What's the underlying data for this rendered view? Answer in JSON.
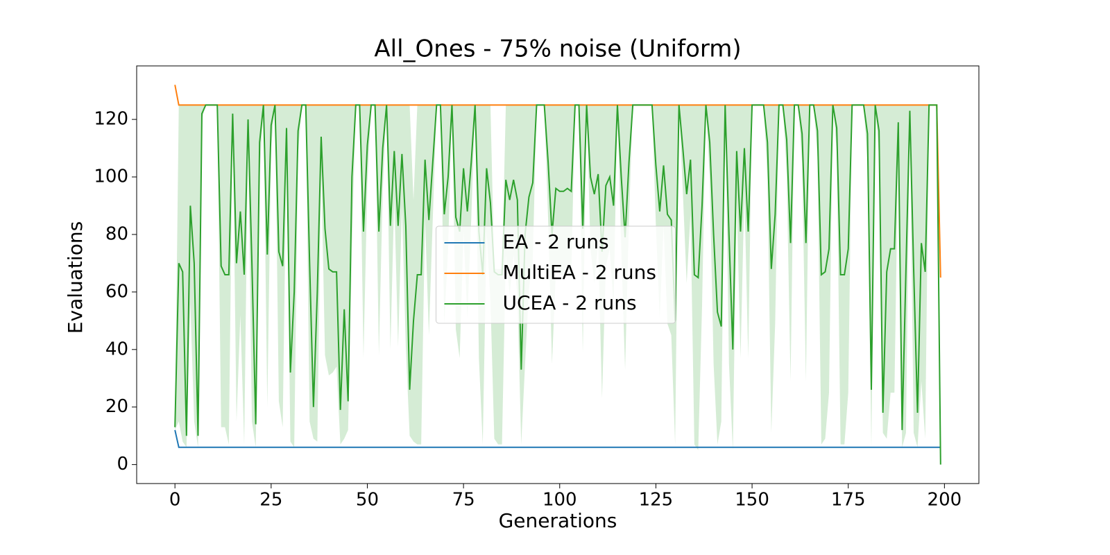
{
  "chart_data": {
    "type": "line",
    "title": "All_Ones - 75% noise (Uniform)",
    "x_label": "Generations",
    "y_label": "Evaluations",
    "xlim": [
      -9.95,
      208.95
    ],
    "ylim": [
      -6.6,
      138.6
    ],
    "xticks": [
      0,
      25,
      50,
      75,
      100,
      125,
      150,
      175,
      200
    ],
    "yticks": [
      0,
      20,
      40,
      60,
      80,
      100,
      120
    ],
    "legend": "center",
    "x": [
      0,
      1,
      2,
      3,
      4,
      5,
      6,
      7,
      8,
      9,
      10,
      11,
      12,
      13,
      14,
      15,
      16,
      17,
      18,
      19,
      20,
      21,
      22,
      23,
      24,
      25,
      26,
      27,
      28,
      29,
      30,
      31,
      32,
      33,
      34,
      35,
      36,
      37,
      38,
      39,
      40,
      41,
      42,
      43,
      44,
      45,
      46,
      47,
      48,
      49,
      50,
      51,
      52,
      53,
      54,
      55,
      56,
      57,
      58,
      59,
      60,
      61,
      62,
      63,
      64,
      65,
      66,
      67,
      68,
      69,
      70,
      71,
      72,
      73,
      74,
      75,
      76,
      77,
      78,
      79,
      80,
      81,
      82,
      83,
      84,
      85,
      86,
      87,
      88,
      89,
      90,
      91,
      92,
      93,
      94,
      95,
      96,
      97,
      98,
      99,
      100,
      101,
      102,
      103,
      104,
      105,
      106,
      107,
      108,
      109,
      110,
      111,
      112,
      113,
      114,
      115,
      116,
      117,
      118,
      119,
      120,
      121,
      122,
      123,
      124,
      125,
      126,
      127,
      128,
      129,
      130,
      131,
      132,
      133,
      134,
      135,
      136,
      137,
      138,
      139,
      140,
      141,
      142,
      143,
      144,
      145,
      146,
      147,
      148,
      149,
      150,
      151,
      152,
      153,
      154,
      155,
      156,
      157,
      158,
      159,
      160,
      161,
      162,
      163,
      164,
      165,
      166,
      167,
      168,
      169,
      170,
      171,
      172,
      173,
      174,
      175,
      176,
      177,
      178,
      179,
      180,
      181,
      182,
      183,
      184,
      185,
      186,
      187,
      188,
      189,
      190,
      191,
      192,
      193,
      194,
      195,
      196,
      197,
      198,
      199
    ],
    "series": [
      {
        "name": "EA - 2 runs",
        "color": "#1f77b4",
        "values": [
          12,
          6,
          6,
          6,
          6,
          6,
          6,
          6,
          6,
          6,
          6,
          6,
          6,
          6,
          6,
          6,
          6,
          6,
          6,
          6,
          6,
          6,
          6,
          6,
          6,
          6,
          6,
          6,
          6,
          6,
          6,
          6,
          6,
          6,
          6,
          6,
          6,
          6,
          6,
          6,
          6,
          6,
          6,
          6,
          6,
          6,
          6,
          6,
          6,
          6,
          6,
          6,
          6,
          6,
          6,
          6,
          6,
          6,
          6,
          6,
          6,
          6,
          6,
          6,
          6,
          6,
          6,
          6,
          6,
          6,
          6,
          6,
          6,
          6,
          6,
          6,
          6,
          6,
          6,
          6,
          6,
          6,
          6,
          6,
          6,
          6,
          6,
          6,
          6,
          6,
          6,
          6,
          6,
          6,
          6,
          6,
          6,
          6,
          6,
          6,
          6,
          6,
          6,
          6,
          6,
          6,
          6,
          6,
          6,
          6,
          6,
          6,
          6,
          6,
          6,
          6,
          6,
          6,
          6,
          6,
          6,
          6,
          6,
          6,
          6,
          6,
          6,
          6,
          6,
          6,
          6,
          6,
          6,
          6,
          6,
          6,
          6,
          6,
          6,
          6,
          6,
          6,
          6,
          6,
          6,
          6,
          6,
          6,
          6,
          6,
          6,
          6,
          6,
          6,
          6,
          6,
          6,
          6,
          6,
          6,
          6,
          6,
          6,
          6,
          6,
          6,
          6,
          6,
          6,
          6,
          6,
          6,
          6,
          6,
          6,
          6,
          6,
          6,
          6,
          6,
          6,
          6,
          6,
          6,
          6,
          6,
          6,
          6,
          6,
          6,
          6,
          6,
          6,
          6,
          6,
          6,
          6,
          6,
          6,
          6
        ]
      },
      {
        "name": "MultiEA - 2 runs",
        "color": "#ff7f0e",
        "values": [
          132,
          125,
          125,
          125,
          125,
          125,
          125,
          125,
          125,
          125,
          125,
          125,
          125,
          125,
          125,
          125,
          125,
          125,
          125,
          125,
          125,
          125,
          125,
          125,
          125,
          125,
          125,
          125,
          125,
          125,
          125,
          125,
          125,
          125,
          125,
          125,
          125,
          125,
          125,
          125,
          125,
          125,
          125,
          125,
          125,
          125,
          125,
          125,
          125,
          125,
          125,
          125,
          125,
          125,
          125,
          125,
          125,
          125,
          125,
          125,
          125,
          125,
          125,
          125,
          125,
          125,
          125,
          125,
          125,
          125,
          125,
          125,
          125,
          125,
          125,
          125,
          125,
          125,
          125,
          125,
          125,
          125,
          125,
          125,
          125,
          125,
          125,
          125,
          125,
          125,
          125,
          125,
          125,
          125,
          125,
          125,
          125,
          125,
          125,
          125,
          125,
          125,
          125,
          125,
          125,
          125,
          125,
          125,
          125,
          125,
          125,
          125,
          125,
          125,
          125,
          125,
          125,
          125,
          125,
          125,
          125,
          125,
          125,
          125,
          125,
          125,
          125,
          125,
          125,
          125,
          125,
          125,
          125,
          125,
          125,
          125,
          125,
          125,
          125,
          125,
          125,
          125,
          125,
          125,
          125,
          125,
          125,
          125,
          125,
          125,
          125,
          125,
          125,
          125,
          125,
          125,
          125,
          125,
          125,
          125,
          125,
          125,
          125,
          125,
          125,
          125,
          125,
          125,
          125,
          125,
          125,
          125,
          125,
          125,
          125,
          125,
          125,
          125,
          125,
          125,
          125,
          125,
          125,
          125,
          125,
          125,
          125,
          125,
          125,
          125,
          125,
          125,
          125,
          125,
          125,
          125,
          125,
          125,
          125,
          65
        ]
      },
      {
        "name": "UCEA - 2 runs",
        "color": "#2ca02c",
        "band_color": "#2ca02c",
        "values": [
          13,
          70,
          67,
          10,
          90,
          70,
          10,
          122,
          125,
          125,
          125,
          125,
          69,
          66,
          66,
          122,
          70,
          88,
          66,
          120,
          70,
          14,
          112,
          125,
          73,
          118,
          125,
          74,
          69,
          117,
          32,
          60,
          116,
          125,
          125,
          70,
          20,
          60,
          114,
          82,
          68,
          67,
          67,
          19,
          54,
          22,
          100,
          125,
          125,
          81,
          111,
          125,
          125,
          81,
          110,
          125,
          83,
          109,
          83,
          108,
          83,
          26,
          50,
          66,
          66,
          106,
          85,
          105,
          125,
          125,
          87,
          100,
          125,
          86,
          81,
          103,
          88,
          105,
          125,
          81,
          66,
          103,
          91,
          67,
          66,
          66,
          99,
          92,
          99,
          92,
          33,
          80,
          93,
          98,
          125,
          125,
          125,
          105,
          80,
          96,
          95,
          95,
          96,
          95,
          125,
          125,
          82,
          125,
          100,
          94,
          101,
          74,
          97,
          100,
          90,
          125,
          100,
          79,
          105,
          125,
          125,
          125,
          125,
          125,
          125,
          104,
          88,
          104,
          87,
          85,
          50,
          125,
          110,
          94,
          106,
          66,
          65,
          90,
          125,
          112,
          80,
          53,
          48,
          125,
          80,
          40,
          109,
          81,
          110,
          81,
          125,
          125,
          125,
          125,
          112,
          68,
          87,
          125,
          125,
          113,
          77,
          125,
          125,
          115,
          77,
          125,
          125,
          116,
          66,
          67,
          75,
          125,
          117,
          66,
          66,
          75,
          125,
          125,
          125,
          125,
          115,
          26,
          125,
          116,
          18,
          67,
          75,
          75,
          119,
          12,
          68,
          123,
          68,
          18,
          77,
          67,
          125,
          125,
          125,
          0
        ],
        "lower": [
          12,
          15,
          8,
          6,
          56,
          15,
          6,
          120,
          125,
          125,
          125,
          125,
          13,
          13,
          7,
          120,
          15,
          52,
          7,
          115,
          15,
          6,
          100,
          125,
          20,
          110,
          125,
          22,
          13,
          110,
          8,
          6,
          108,
          125,
          125,
          15,
          9,
          8,
          104,
          38,
          31,
          32,
          34,
          7,
          9,
          12,
          75,
          125,
          125,
          37,
          97,
          125,
          125,
          38,
          95,
          125,
          40,
          93,
          41,
          90,
          41,
          10,
          8,
          7,
          7,
          86,
          45,
          85,
          125,
          125,
          49,
          75,
          125,
          47,
          37,
          81,
          51,
          85,
          125,
          37,
          7,
          81,
          57,
          9,
          7,
          7,
          73,
          59,
          73,
          59,
          7,
          35,
          61,
          71,
          125,
          125,
          125,
          85,
          35,
          67,
          66,
          66,
          67,
          66,
          125,
          125,
          39,
          125,
          75,
          63,
          77,
          23,
          69,
          75,
          55,
          125,
          75,
          33,
          85,
          125,
          125,
          125,
          125,
          125,
          125,
          83,
          51,
          83,
          49,
          45,
          7,
          125,
          95,
          63,
          87,
          7,
          5,
          55,
          125,
          99,
          35,
          7,
          15,
          125,
          35,
          5,
          93,
          37,
          95,
          37,
          125,
          125,
          125,
          125,
          99,
          11,
          49,
          125,
          125,
          101,
          29,
          125,
          125,
          105,
          29,
          125,
          125,
          107,
          7,
          9,
          25,
          125,
          109,
          7,
          7,
          25,
          125,
          125,
          125,
          125,
          105,
          6,
          125,
          107,
          11,
          9,
          25,
          25,
          113,
          6,
          11,
          121,
          11,
          6,
          29,
          9,
          125,
          125,
          125,
          0
        ],
        "upper": [
          14,
          125,
          125,
          125,
          125,
          125,
          125,
          125,
          125,
          125,
          125,
          125,
          125,
          125,
          125,
          125,
          125,
          125,
          125,
          125,
          125,
          125,
          125,
          125,
          125,
          125,
          125,
          125,
          125,
          125,
          125,
          125,
          125,
          125,
          125,
          125,
          125,
          125,
          125,
          125,
          125,
          125,
          125,
          125,
          125,
          125,
          125,
          125,
          125,
          125,
          125,
          125,
          125,
          125,
          125,
          125,
          125,
          125,
          125,
          125,
          125,
          125,
          92,
          125,
          125,
          125,
          125,
          125,
          125,
          125,
          125,
          125,
          125,
          125,
          125,
          125,
          125,
          125,
          125,
          125,
          125,
          125,
          125,
          68,
          68,
          68,
          125,
          125,
          125,
          125,
          125,
          125,
          125,
          125,
          125,
          125,
          125,
          125,
          125,
          125,
          125,
          125,
          125,
          125,
          125,
          125,
          125,
          125,
          125,
          125,
          125,
          125,
          125,
          125,
          125,
          125,
          125,
          125,
          125,
          125,
          125,
          125,
          125,
          125,
          125,
          125,
          125,
          125,
          125,
          125,
          125,
          125,
          125,
          125,
          125,
          125,
          125,
          125,
          125,
          125,
          125,
          125,
          125,
          125,
          125,
          125,
          125,
          125,
          125,
          125,
          125,
          125,
          125,
          125,
          125,
          125,
          125,
          125,
          125,
          125,
          125,
          125,
          125,
          125,
          125,
          125,
          125,
          125,
          125,
          125,
          125,
          125,
          125,
          125,
          125,
          125,
          125,
          125,
          125,
          125,
          125,
          125,
          125,
          125,
          125,
          125,
          125,
          125,
          125,
          125,
          125,
          125,
          125,
          125,
          125,
          125,
          125,
          125,
          125,
          0
        ]
      }
    ]
  }
}
